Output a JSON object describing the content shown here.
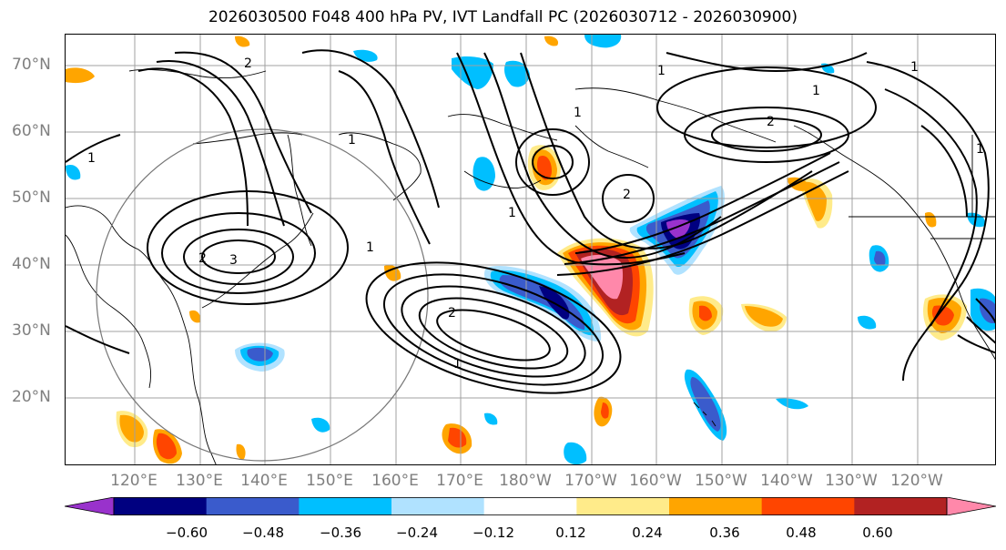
{
  "title": "2026030500 F048 400 hPa PV, IVT Landfall PC (2026030712 - 2026030900)",
  "lat_labels": [
    "70°N",
    "60°N",
    "50°N",
    "40°N",
    "30°N",
    "20°N"
  ],
  "lon_labels": [
    "120°E",
    "130°E",
    "140°E",
    "150°E",
    "160°E",
    "170°E",
    "180°W",
    "170°W",
    "160°W",
    "150°W",
    "140°W",
    "130°W",
    "120°W"
  ],
  "colorbar": {
    "colors": [
      "#9932cc",
      "#000080",
      "#3a5bcc",
      "#00bfff",
      "#b0e2ff",
      "#ffffff",
      "#ffeb8a",
      "#ffa500",
      "#ff4500",
      "#b22222",
      "#ff88aa"
    ],
    "tick_labels": [
      "−0.60",
      "−0.48",
      "−0.36",
      "−0.24",
      "−0.12",
      "0.12",
      "0.24",
      "0.36",
      "0.48",
      "0.60"
    ]
  },
  "contour_labels": [
    "1",
    "1",
    "1",
    "2",
    "2",
    "3",
    "2",
    "2",
    "1",
    "1",
    "2",
    "1",
    "1",
    "1",
    "1",
    "1"
  ]
}
